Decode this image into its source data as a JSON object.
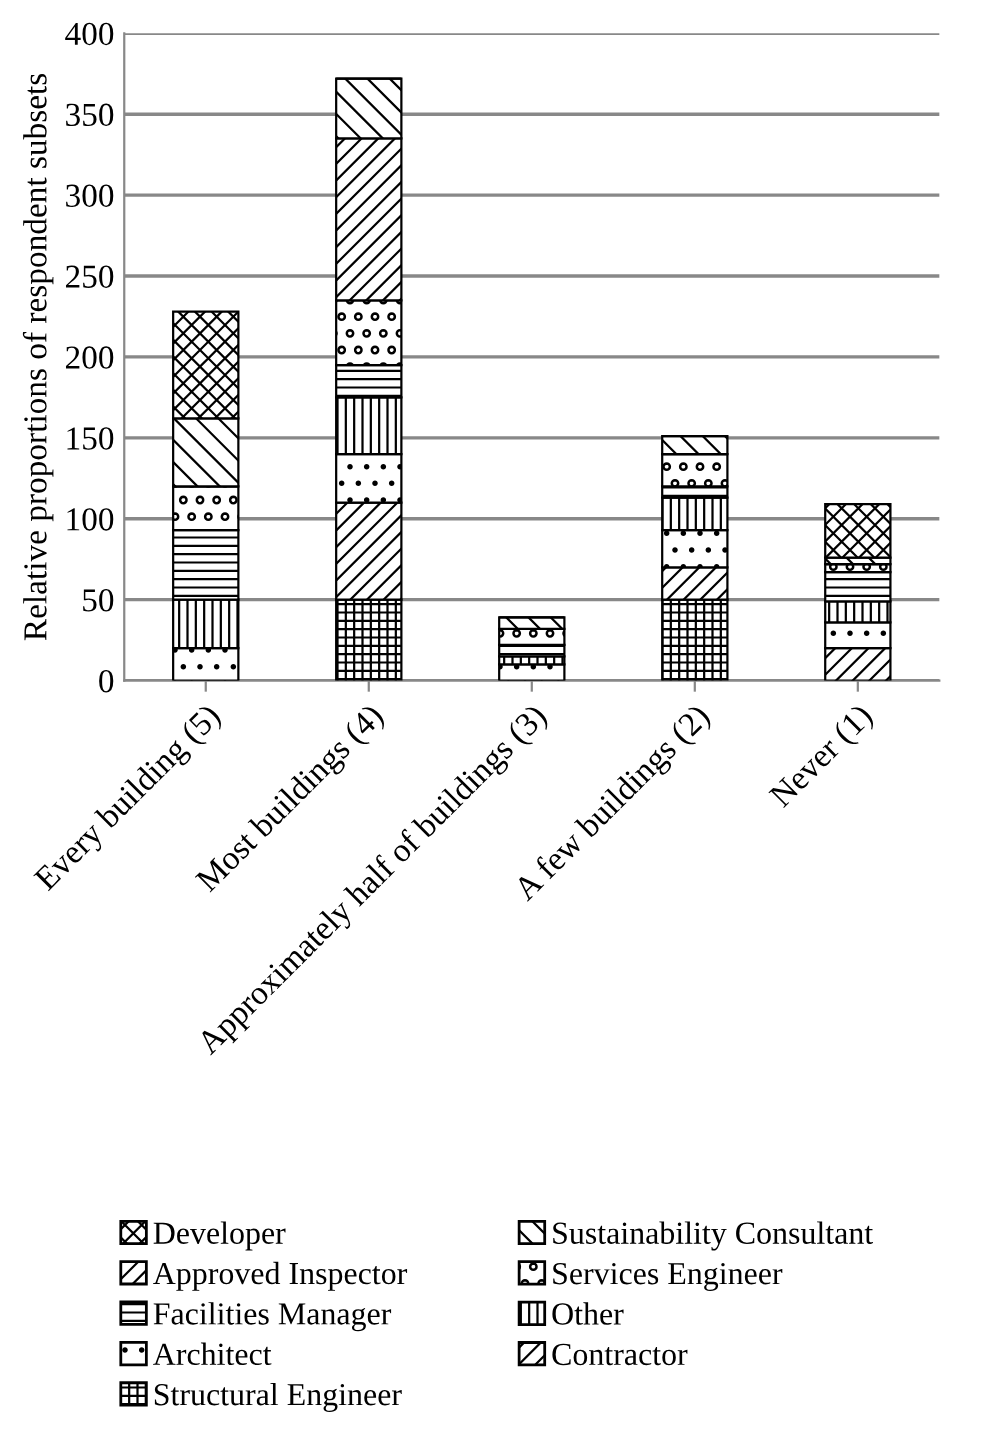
{
  "chart_data": {
    "type": "bar",
    "stacked": true,
    "ylabel": "Relative proportions of respondent subsets",
    "categories": [
      "Every building (5)",
      "Most buildings (4)",
      "Approximately half of buildings (3)",
      "A few buildings (2)",
      "Never (1)"
    ],
    "series": [
      {
        "name": "Structural Engineer",
        "color": "#000000",
        "values": [
          0,
          50,
          0,
          50,
          0
        ]
      },
      {
        "name": "Contractor",
        "color": "#000000",
        "values": [
          0,
          60,
          0,
          20,
          20
        ]
      },
      {
        "name": "Architect",
        "color": "#000000",
        "values": [
          20,
          30,
          10,
          23,
          16
        ]
      },
      {
        "name": "Other",
        "color": "#000000",
        "values": [
          30,
          35,
          5,
          20,
          13
        ]
      },
      {
        "name": "Facilities Manager",
        "color": "#000000",
        "values": [
          43,
          20,
          7,
          7,
          18
        ]
      },
      {
        "name": "Services Engineer",
        "color": "#000000",
        "values": [
          27,
          40,
          10,
          20,
          5
        ]
      },
      {
        "name": "Approved Inspector",
        "color": "#000000",
        "values": [
          0,
          100,
          0,
          0,
          0
        ]
      },
      {
        "name": "Sustainability Consultant",
        "color": "#000000",
        "values": [
          42,
          37,
          7,
          11,
          4
        ]
      },
      {
        "name": "Developer",
        "color": "#000000",
        "values": [
          66,
          0,
          0,
          0,
          33
        ]
      }
    ],
    "ylim": [
      0,
      400
    ],
    "yticks": [
      0,
      50,
      100,
      150,
      200,
      250,
      300,
      350,
      400
    ],
    "grid": "y",
    "legend": "bottom"
  }
}
